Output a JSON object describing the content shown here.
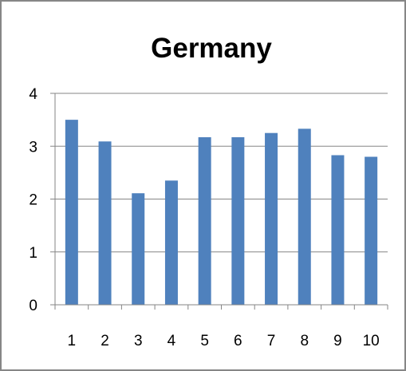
{
  "chart_data": {
    "type": "bar",
    "title": "Germany",
    "xlabel": "",
    "ylabel": "",
    "categories": [
      "1",
      "2",
      "3",
      "4",
      "5",
      "6",
      "7",
      "8",
      "9",
      "10"
    ],
    "values": [
      3.5,
      3.09,
      2.11,
      2.35,
      3.17,
      3.17,
      3.25,
      3.33,
      2.83,
      2.8
    ],
    "ylim": [
      0,
      4
    ],
    "yticks": [
      0,
      1,
      2,
      3,
      4
    ],
    "grid": "horizontal",
    "legend": "none",
    "colors": {
      "bar": "#4F81BD",
      "grid": "#868686",
      "axis": "#868686",
      "frame": "#868686",
      "background": "#ffffff"
    }
  }
}
